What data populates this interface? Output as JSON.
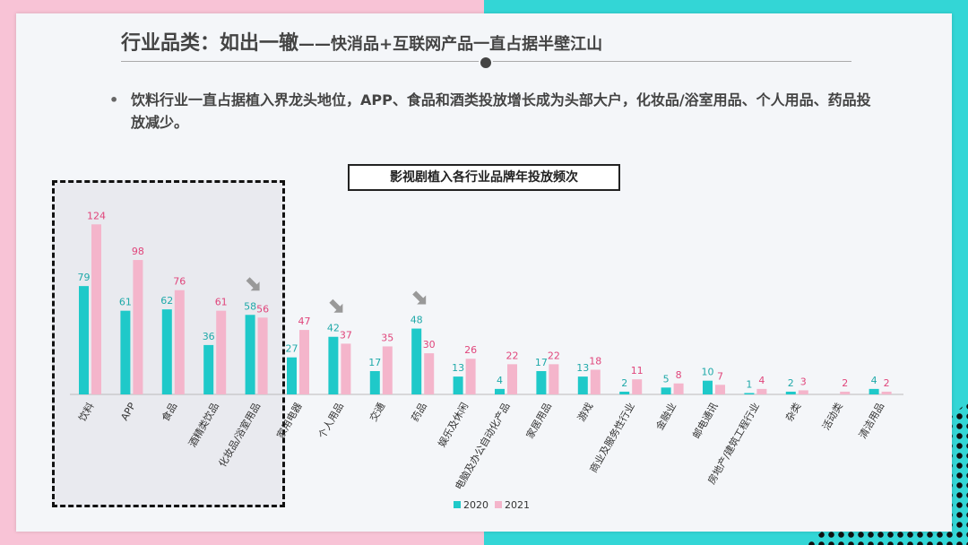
{
  "header": {
    "title": "行业品类：如出一辙",
    "subtitle": "——快消品+互联网产品一直占据半壁江山"
  },
  "bullet": {
    "text": "饮料行业一直占据植入界龙头地位，APP、食品和酒类投放增长成为头部大户，化妆品/浴室用品、个人用品、药品投放减少。"
  },
  "colors": {
    "series_2020": "#1fc9c9",
    "series_2021": "#f4b5cb",
    "label_2020": "#1fa9a9",
    "label_2021": "#e0457b",
    "arrow": "#999999"
  },
  "chart_data": {
    "type": "bar",
    "title": "影视剧植入各行业品牌年投放频次",
    "categories": [
      "饮料",
      "APP",
      "食品",
      "酒精类饮品",
      "化妆品/浴室用品",
      "家用电器",
      "个人用品",
      "交通",
      "药品",
      "娱乐及休闲",
      "电脑及办公自动化产品",
      "家居用品",
      "游戏",
      "商业及服务性行业",
      "金融业",
      "邮电通讯",
      "房地产/建筑工程行业",
      "杂类",
      "活动类",
      "清洁用品"
    ],
    "series": [
      {
        "name": "2020",
        "values": [
          79,
          61,
          62,
          36,
          58,
          27,
          42,
          17,
          48,
          13,
          4,
          17,
          13,
          2,
          5,
          10,
          1,
          2,
          0,
          4
        ]
      },
      {
        "name": "2021",
        "values": [
          124,
          98,
          76,
          61,
          56,
          47,
          37,
          35,
          30,
          26,
          22,
          22,
          18,
          11,
          8,
          7,
          4,
          3,
          2,
          2
        ]
      }
    ],
    "value_labels_2020": [
      "79",
      "61",
      "62",
      "36",
      "58",
      "27",
      "42",
      "17",
      "48",
      "13",
      "4",
      "17",
      "13",
      "2",
      "5",
      "10",
      "1",
      "2",
      "",
      "4"
    ],
    "arrows_on": [
      "化妆品/浴室用品",
      "个人用品",
      "药品"
    ],
    "legend_position": "bottom-center",
    "ylim": [
      0,
      130
    ]
  }
}
